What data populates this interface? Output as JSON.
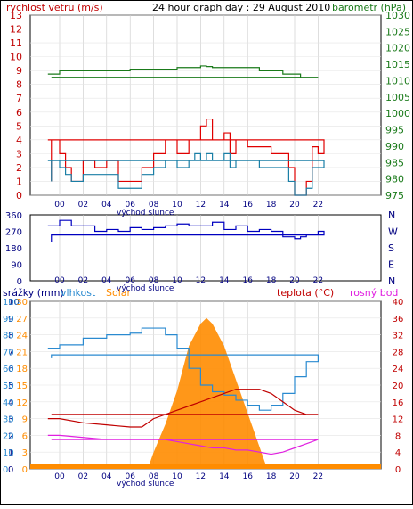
{
  "chart_data": [
    {
      "type": "line",
      "title": "24 hour graph day : 29 August 2010",
      "ylabel_left": "rychlost vetru (m/s)",
      "ylabel_right": "barometr (hPa)",
      "xlabel": "východ slunce",
      "x_ticks": [
        "00",
        "02",
        "04",
        "06",
        "08",
        "10",
        "12",
        "14",
        "16",
        "18",
        "20",
        "22"
      ],
      "y_left_ticks": [
        "13",
        "12",
        "11",
        "10",
        "9",
        "8",
        "7",
        "6",
        "5",
        "4",
        "3",
        "2",
        "1",
        "0"
      ],
      "y_right_ticks": [
        "1030",
        "1025",
        "1020",
        "1015",
        "1010",
        "1005",
        "1000",
        "995",
        "990",
        "985",
        "980",
        "975"
      ],
      "ylim_left": [
        0,
        13
      ],
      "ylim_right": [
        975,
        1030
      ],
      "series": [
        {
          "name": "wind gust",
          "color": "#e00000",
          "x": [
            23,
            0,
            0.5,
            1,
            2,
            3,
            4,
            5,
            6,
            7,
            8,
            9,
            10,
            11,
            11.5,
            12,
            12.5,
            13,
            13.5,
            14,
            14.5,
            15,
            16,
            17,
            18,
            19,
            19.5,
            20,
            21,
            21.5,
            22,
            22.5,
            23.3
          ],
          "y": [
            4,
            3,
            2,
            1,
            2.5,
            2,
            2.5,
            1,
            1,
            2,
            3,
            4,
            3,
            4,
            4,
            5,
            5.5,
            4,
            4,
            4.5,
            3,
            4,
            3.5,
            3.5,
            3,
            3,
            2,
            0,
            1,
            3.5,
            3,
            4,
            1
          ]
        },
        {
          "name": "wind avg",
          "color": "#1a7fa6",
          "x": [
            23,
            0,
            0.5,
            1,
            2,
            3,
            4,
            5,
            6,
            7,
            8,
            9,
            10,
            11,
            11.5,
            12,
            12.5,
            13,
            13.5,
            14,
            14.5,
            15,
            16,
            17,
            18,
            19,
            19.5,
            20,
            21,
            21.5,
            22,
            22.5,
            23.3
          ],
          "y": [
            2.5,
            2,
            1.5,
            1,
            1.5,
            1.5,
            1.5,
            0.5,
            0.5,
            1.5,
            2,
            2.5,
            2,
            2.5,
            3,
            2.5,
            3,
            2.5,
            2.5,
            3,
            2,
            2.5,
            2.5,
            2,
            2,
            2,
            1,
            0,
            0.5,
            2,
            2,
            2.5,
            1
          ]
        },
        {
          "name": "pressure",
          "color": "#1a7a1a",
          "axis": "right",
          "x": [
            23,
            0,
            2,
            4,
            6,
            8,
            10,
            12,
            12.5,
            13,
            15,
            17,
            19,
            20,
            20.5,
            21,
            22,
            23.3
          ],
          "y": [
            1012,
            1013,
            1013,
            1013,
            1013.5,
            1013.5,
            1014,
            1014.5,
            1014.3,
            1014,
            1014,
            1013,
            1012,
            1012,
            1011,
            1011,
            1011,
            1011
          ]
        }
      ]
    },
    {
      "type": "line",
      "xlabel": "východ slunce",
      "x_ticks": [
        "00",
        "02",
        "04",
        "06",
        "08",
        "10",
        "12",
        "14",
        "16",
        "18",
        "20",
        "22"
      ],
      "y_left_ticks": [
        "360",
        "270",
        "180",
        "90",
        "0"
      ],
      "y_right_ticks": [
        "N",
        "W",
        "S",
        "E",
        "N"
      ],
      "ylim": [
        0,
        360
      ],
      "series": [
        {
          "name": "wind direction",
          "color": "#0000c0",
          "x": [
            23,
            0,
            1,
            2,
            3,
            4,
            5,
            6,
            7,
            8,
            9,
            10,
            11,
            12,
            13,
            14,
            15,
            16,
            17,
            18,
            19,
            20,
            20.5,
            21,
            22,
            22.5,
            23.3
          ],
          "y": [
            300,
            330,
            300,
            300,
            270,
            280,
            270,
            290,
            280,
            290,
            300,
            310,
            300,
            300,
            320,
            280,
            300,
            270,
            280,
            270,
            240,
            230,
            240,
            250,
            270,
            250,
            210
          ]
        }
      ]
    },
    {
      "type": "line",
      "xlabel": "východ slunce",
      "legend": [
        "srážky (mm)",
        "vlhkost",
        "Solar",
        "teplota (°C)",
        "rosný bod"
      ],
      "x_ticks": [
        "00",
        "02",
        "04",
        "06",
        "08",
        "10",
        "12",
        "14",
        "16",
        "18",
        "20",
        "22"
      ],
      "y_left1_ticks": [
        "10",
        "9",
        "8",
        "7",
        "6",
        "5",
        "4",
        "3",
        "2",
        "1",
        "0"
      ],
      "y_left2_ticks": [
        "100",
        "90",
        "80",
        "70",
        "60",
        "50",
        "40",
        "30",
        "20",
        "10",
        "0"
      ],
      "y_left3_ticks": [
        "30",
        "27",
        "24",
        "21",
        "18",
        "15",
        "12",
        "9",
        "6",
        "3",
        "0"
      ],
      "y_right_ticks": [
        "40",
        "36",
        "32",
        "28",
        "24",
        "20",
        "16",
        "12",
        "8",
        "4",
        "0"
      ],
      "ylim_humidity": [
        0,
        100
      ],
      "ylim_temp": [
        0,
        40
      ],
      "series": [
        {
          "name": "vlhkost",
          "color": "#2a8ad0",
          "x": [
            23,
            0,
            2,
            4,
            6,
            7,
            8,
            9,
            10,
            11,
            12,
            13,
            14,
            15,
            16,
            17,
            18,
            19,
            20,
            21,
            22,
            23.3
          ],
          "y": [
            72,
            74,
            78,
            80,
            81,
            84,
            84,
            80,
            72,
            60,
            50,
            46,
            44,
            41,
            38,
            35,
            38,
            45,
            55,
            64,
            68,
            66
          ]
        },
        {
          "name": "teplota",
          "color": "#c00000",
          "x": [
            23,
            0,
            2,
            4,
            6,
            7,
            8,
            9,
            10,
            11,
            12,
            13,
            14,
            15,
            16,
            17,
            18,
            19,
            20,
            21,
            22,
            23.3
          ],
          "y": [
            12,
            12,
            11,
            10.5,
            10,
            10,
            12,
            13,
            14,
            15,
            16,
            17,
            18,
            19,
            19,
            19,
            18,
            16,
            14,
            13,
            13,
            13
          ]
        },
        {
          "name": "rosný bod",
          "color": "#e020e0",
          "x": [
            23,
            0,
            2,
            4,
            6,
            7,
            8,
            9,
            10,
            11,
            12,
            13,
            14,
            15,
            16,
            17,
            18,
            19,
            20,
            21,
            22,
            23.3
          ],
          "y": [
            8,
            8,
            7.5,
            7,
            7,
            7,
            7,
            7,
            6.5,
            6,
            5.5,
            5,
            5,
            4.5,
            4.5,
            4,
            3.5,
            4,
            5,
            6,
            7,
            7
          ]
        },
        {
          "name": "Solar",
          "color": "#ff8c00",
          "x": [
            7.5,
            8,
            9,
            10,
            11,
            12,
            12.5,
            13,
            14,
            15,
            16,
            17,
            17.5,
            18
          ],
          "y": [
            0,
            3,
            8,
            14,
            22,
            26,
            27,
            26,
            22,
            16,
            10,
            4,
            1,
            0
          ]
        }
      ]
    }
  ]
}
